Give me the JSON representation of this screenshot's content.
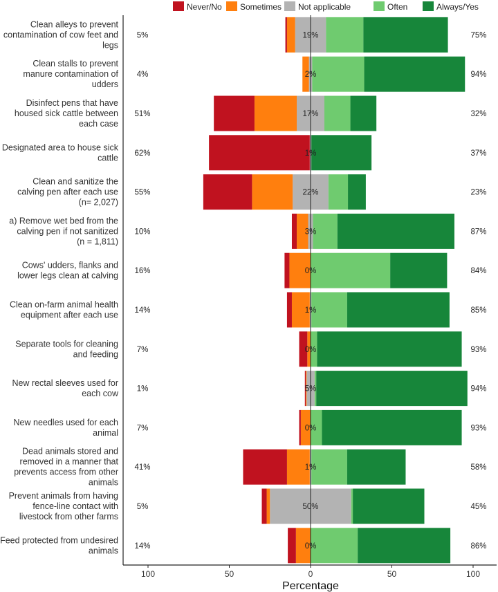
{
  "chart_data": {
    "type": "bar",
    "stacked": true,
    "orientation": "horizontal",
    "diverging": true,
    "xlabel": "Percentage",
    "ylabel": "",
    "xlim": [
      -115,
      115
    ],
    "xticks": [
      -100,
      -50,
      0,
      50,
      100
    ],
    "xtick_labels": [
      "100",
      "50",
      "0",
      "50",
      "100"
    ],
    "legend": {
      "position": "top",
      "items": [
        {
          "name": "Never/No",
          "color": "#c0121f"
        },
        {
          "name": "Sometimes",
          "color": "#ff7f0e"
        },
        {
          "name": "Not applicable",
          "color": "#b3b3b3"
        },
        {
          "name": "Often",
          "color": "#6fcb6f"
        },
        {
          "name": "Always/Yes",
          "color": "#17863a"
        }
      ]
    },
    "series_order": [
      "never",
      "sometimes",
      "na",
      "often",
      "always"
    ],
    "categories": [
      {
        "label": [
          "Clean alleys to prevent",
          "contamination of cow feet and",
          "legs"
        ],
        "left_pct": "5%",
        "center_pct": "19%",
        "right_pct": "75%",
        "never": 1,
        "sometimes": 5,
        "na": 19,
        "often": 23,
        "always": 52
      },
      {
        "label": [
          "Clean stalls to prevent",
          "manure contamination of",
          "udders"
        ],
        "left_pct": "4%",
        "center_pct": "2%",
        "right_pct": "94%",
        "never": 0,
        "sometimes": 4,
        "na": 2,
        "often": 32,
        "always": 62
      },
      {
        "label": [
          "Disinfect pens that have",
          "housed sick cattle between",
          "each case"
        ],
        "left_pct": "51%",
        "center_pct": "17%",
        "right_pct": "32%",
        "never": 25,
        "sometimes": 26,
        "na": 17,
        "often": 16,
        "always": 16
      },
      {
        "label": [
          "Designated area to house sick",
          "cattle"
        ],
        "left_pct": "62%",
        "center_pct": "1%",
        "right_pct": "37%",
        "never": 62,
        "sometimes": 0,
        "na": 1,
        "often": 0,
        "always": 37
      },
      {
        "label": [
          "Clean and sanitize the",
          "calving pen after each use",
          "(n= 2,027)"
        ],
        "left_pct": "55%",
        "center_pct": "22%",
        "right_pct": "23%",
        "never": 30,
        "sometimes": 25,
        "na": 22,
        "often": 12,
        "always": 11
      },
      {
        "label": [
          "a) Remove wet bed from the",
          "calving pen if not sanitized",
          "(n = 1,811)"
        ],
        "left_pct": "10%",
        "center_pct": "3%",
        "right_pct": "87%",
        "never": 3,
        "sometimes": 7,
        "na": 3,
        "often": 15,
        "always": 72
      },
      {
        "label": [
          "Cows' udders, flanks and",
          "lower legs clean at calving"
        ],
        "left_pct": "16%",
        "center_pct": "0%",
        "right_pct": "84%",
        "never": 3,
        "sometimes": 13,
        "na": 0,
        "often": 49,
        "always": 35
      },
      {
        "label": [
          "Clean on-farm animal health",
          "equipment after each use"
        ],
        "left_pct": "14%",
        "center_pct": "1%",
        "right_pct": "85%",
        "never": 3,
        "sometimes": 11,
        "na": 1,
        "often": 22,
        "always": 63
      },
      {
        "label": [
          "Separate tools for cleaning",
          "and feeding"
        ],
        "left_pct": "7%",
        "center_pct": "0%",
        "right_pct": "93%",
        "never": 5,
        "sometimes": 2,
        "na": 0,
        "often": 4,
        "always": 89
      },
      {
        "label": [
          "New rectal sleeves used for",
          "each cow"
        ],
        "left_pct": "1%",
        "center_pct": "5%",
        "right_pct": "94%",
        "never": 0.5,
        "sometimes": 0.5,
        "na": 5,
        "often": 1,
        "always": 93
      },
      {
        "label": [
          "New needles used for each",
          "animal"
        ],
        "left_pct": "7%",
        "center_pct": "0%",
        "right_pct": "93%",
        "never": 1,
        "sometimes": 6,
        "na": 0,
        "often": 7,
        "always": 86
      },
      {
        "label": [
          "Dead animals stored and",
          "removed in a manner that",
          "prevents access from other",
          "animals"
        ],
        "left_pct": "41%",
        "center_pct": "1%",
        "right_pct": "58%",
        "never": 27,
        "sometimes": 14,
        "na": 1,
        "often": 22,
        "always": 36
      },
      {
        "label": [
          "Prevent animals from having",
          "fence-line contact with",
          "livestock from other farms"
        ],
        "left_pct": "5%",
        "center_pct": "50%",
        "right_pct": "45%",
        "never": 3,
        "sometimes": 2,
        "na": 50,
        "often": 1,
        "always": 44
      },
      {
        "label": [
          "Feed protected from undesired",
          "animals"
        ],
        "left_pct": "14%",
        "center_pct": "0%",
        "right_pct": "86%",
        "never": 5,
        "sometimes": 9,
        "na": 0,
        "often": 29,
        "always": 57
      }
    ]
  }
}
